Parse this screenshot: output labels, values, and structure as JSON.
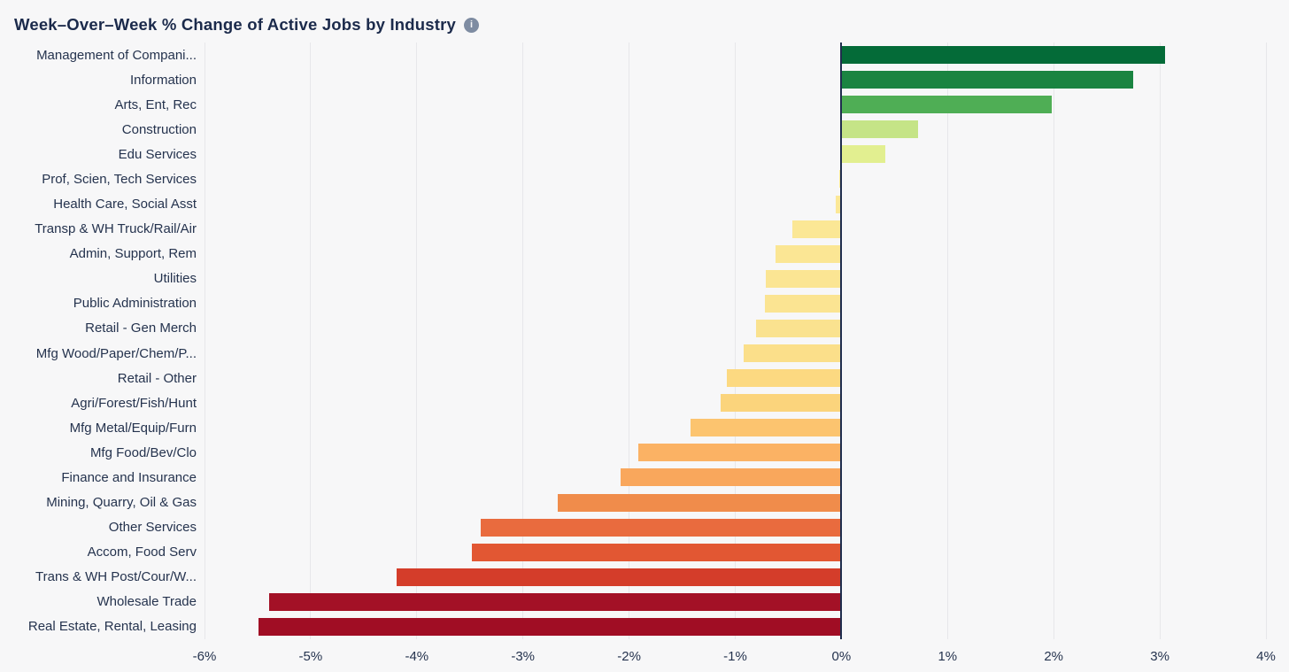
{
  "header": {
    "title": "Week–Over–Week % Change of Active Jobs by Industry",
    "info_icon_glyph": "i"
  },
  "chart_data": {
    "type": "bar",
    "orientation": "horizontal",
    "title": "Week–Over–Week % Change of Active Jobs by Industry",
    "xlabel": "",
    "ylabel": "",
    "xlim": [
      -6,
      4
    ],
    "grid": true,
    "legend": "none",
    "x_tick_values": [
      -6,
      -5,
      -4,
      -3,
      -2,
      -1,
      0,
      1,
      2,
      3,
      4
    ],
    "x_ticks": [
      "-6%",
      "-5%",
      "-4%",
      "-3%",
      "-2%",
      "-1%",
      "0%",
      "1%",
      "2%",
      "3%",
      "4%"
    ],
    "categories": [
      "Management of Compani...",
      "Information",
      "Arts, Ent, Rec",
      "Construction",
      "Edu Services",
      "Prof, Scien, Tech Services",
      "Health Care, Social Asst",
      "Transp & WH Truck/Rail/Air",
      "Admin, Support, Rem",
      "Utilities",
      "Public Administration",
      "Retail - Gen Merch",
      "Mfg Wood/Paper/Chem/P...",
      "Retail - Other",
      "Agri/Forest/Fish/Hunt",
      "Mfg Metal/Equip/Furn",
      "Mfg Food/Bev/Clo",
      "Finance and Insurance",
      "Mining, Quarry, Oil & Gas",
      "Other Services",
      "Accom, Food Serv",
      "Trans & WH Post/Cour/W...",
      "Wholesale Trade",
      "Real Estate, Rental, Leasing"
    ],
    "values": [
      3.05,
      2.75,
      1.98,
      0.72,
      0.41,
      -0.02,
      -0.05,
      -0.46,
      -0.62,
      -0.71,
      -0.72,
      -0.8,
      -0.92,
      -1.08,
      -1.14,
      -1.42,
      -1.91,
      -2.08,
      -2.67,
      -3.4,
      -3.48,
      -4.19,
      -5.39,
      -5.49
    ],
    "bar_colors": [
      "#046b38",
      "#1a8441",
      "#4fae55",
      "#c5e487",
      "#e2ef90",
      "#fee998",
      "#fce897",
      "#fbe795",
      "#fbe694",
      "#fbe593",
      "#fbe492",
      "#fae28f",
      "#fbdf8a",
      "#fcd981",
      "#fbd47c",
      "#fcc46f",
      "#fbb264",
      "#f9a75c",
      "#f08c4b",
      "#e96b3e",
      "#e25733",
      "#d43d2a",
      "#a31126",
      "#a00d24"
    ],
    "colors": {
      "zero_axis": "#1f2d4d",
      "gridline": "#e7e7ea",
      "label_text": "#25334e",
      "title_text": "#1b2a4b",
      "background": "#f7f7f8"
    }
  }
}
